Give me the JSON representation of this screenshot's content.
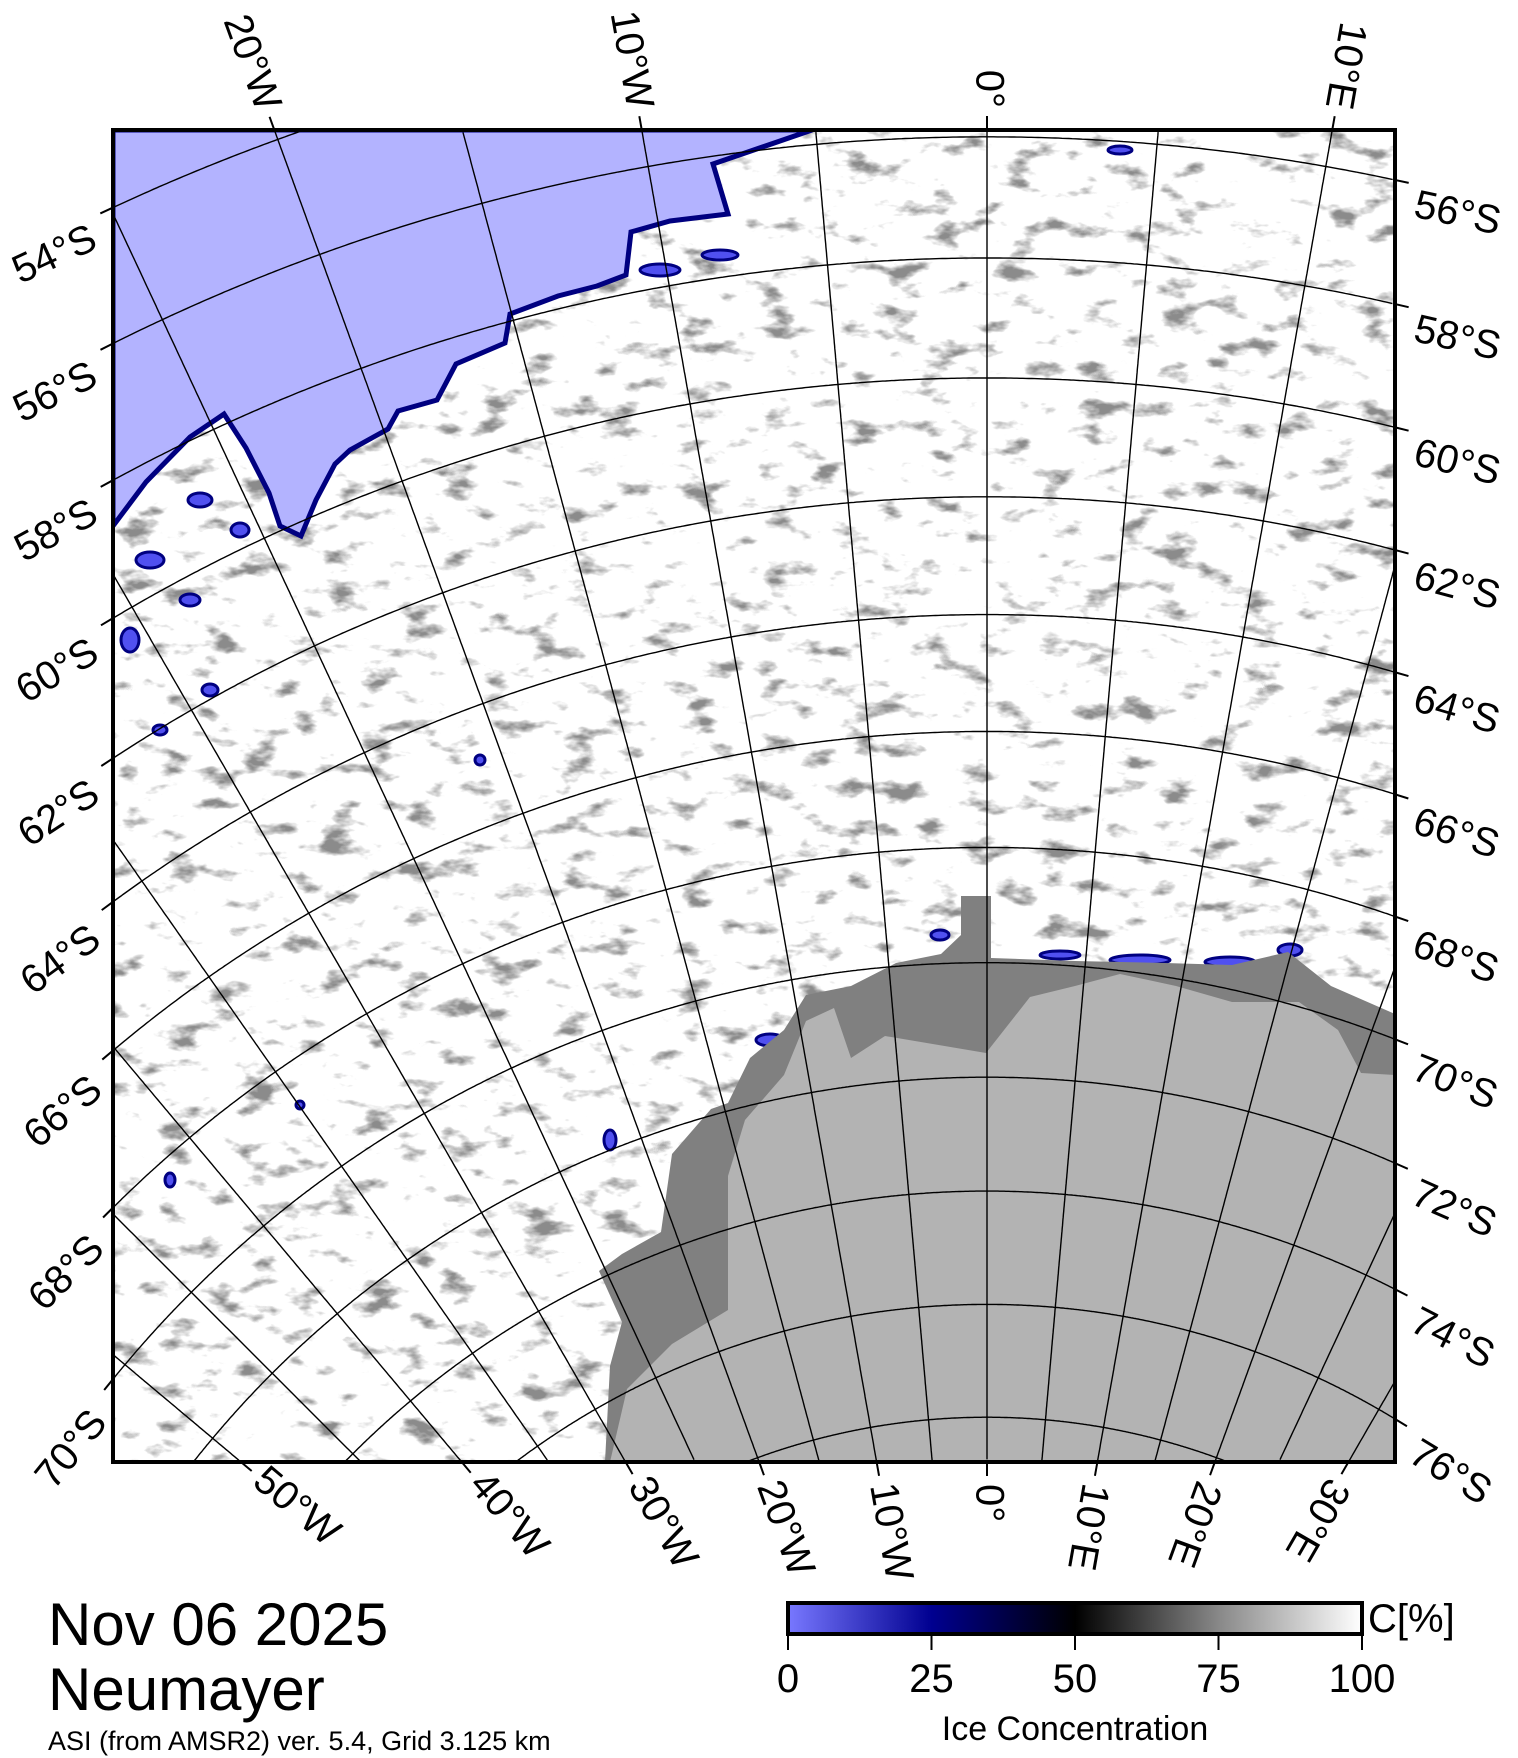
{
  "title": {
    "date": "Nov 06 2025",
    "station": "Neumayer",
    "caption": "ASI (from AMSR2) ver. 5.4,  Grid 3.125 km"
  },
  "map": {
    "colors": {
      "open_water": "#b3b3ff",
      "ice_shelf": "#808080",
      "land": "#b3b3b3",
      "ice_edge": "#000080",
      "sea_ice": "#ffffff"
    },
    "graticule": {
      "top_labels": [
        {
          "lon": -20,
          "text": "20°W"
        },
        {
          "lon": -10,
          "text": "10°W"
        },
        {
          "lon": 0,
          "text": "0°"
        },
        {
          "lon": 10,
          "text": "10°E"
        }
      ],
      "bottom_labels": [
        {
          "lon": -50,
          "text": "50°W"
        },
        {
          "lon": -40,
          "text": "40°W"
        },
        {
          "lon": -30,
          "text": "30°W"
        },
        {
          "lon": -20,
          "text": "20°W"
        },
        {
          "lon": -10,
          "text": "10°W"
        },
        {
          "lon": 0,
          "text": "0°"
        },
        {
          "lon": 10,
          "text": "10°E"
        },
        {
          "lon": 20,
          "text": "20°E"
        },
        {
          "lon": 30,
          "text": "30°E"
        }
      ],
      "left_labels": [
        {
          "lat": 54,
          "text": "54°S"
        },
        {
          "lat": 56,
          "text": "56°S"
        },
        {
          "lat": 58,
          "text": "58°S"
        },
        {
          "lat": 60,
          "text": "60°S"
        },
        {
          "lat": 62,
          "text": "62°S"
        },
        {
          "lat": 64,
          "text": "64°S"
        },
        {
          "lat": 66,
          "text": "66°S"
        },
        {
          "lat": 68,
          "text": "68°S"
        },
        {
          "lat": 70,
          "text": "70°S"
        }
      ],
      "right_labels": [
        {
          "lat": 56,
          "text": "56°S"
        },
        {
          "lat": 58,
          "text": "58°S"
        },
        {
          "lat": 60,
          "text": "60°S"
        },
        {
          "lat": 62,
          "text": "62°S"
        },
        {
          "lat": 64,
          "text": "64°S"
        },
        {
          "lat": 66,
          "text": "66°S"
        },
        {
          "lat": 68,
          "text": "68°S"
        },
        {
          "lat": 70,
          "text": "70°S"
        },
        {
          "lat": 72,
          "text": "72°S"
        },
        {
          "lat": 74,
          "text": "74°S"
        },
        {
          "lat": 76,
          "text": "76°S"
        }
      ]
    }
  },
  "colorbar": {
    "unit": "C[%]",
    "label": "Ice Concentration",
    "ticks": [
      "0",
      "25",
      "50",
      "75",
      "100"
    ],
    "stops": [
      {
        "value": 0,
        "color": "#7878ff"
      },
      {
        "value": 25,
        "color": "#000090"
      },
      {
        "value": 50,
        "color": "#000000"
      },
      {
        "value": 75,
        "color": "#888888"
      },
      {
        "value": 100,
        "color": "#ffffff"
      }
    ]
  }
}
